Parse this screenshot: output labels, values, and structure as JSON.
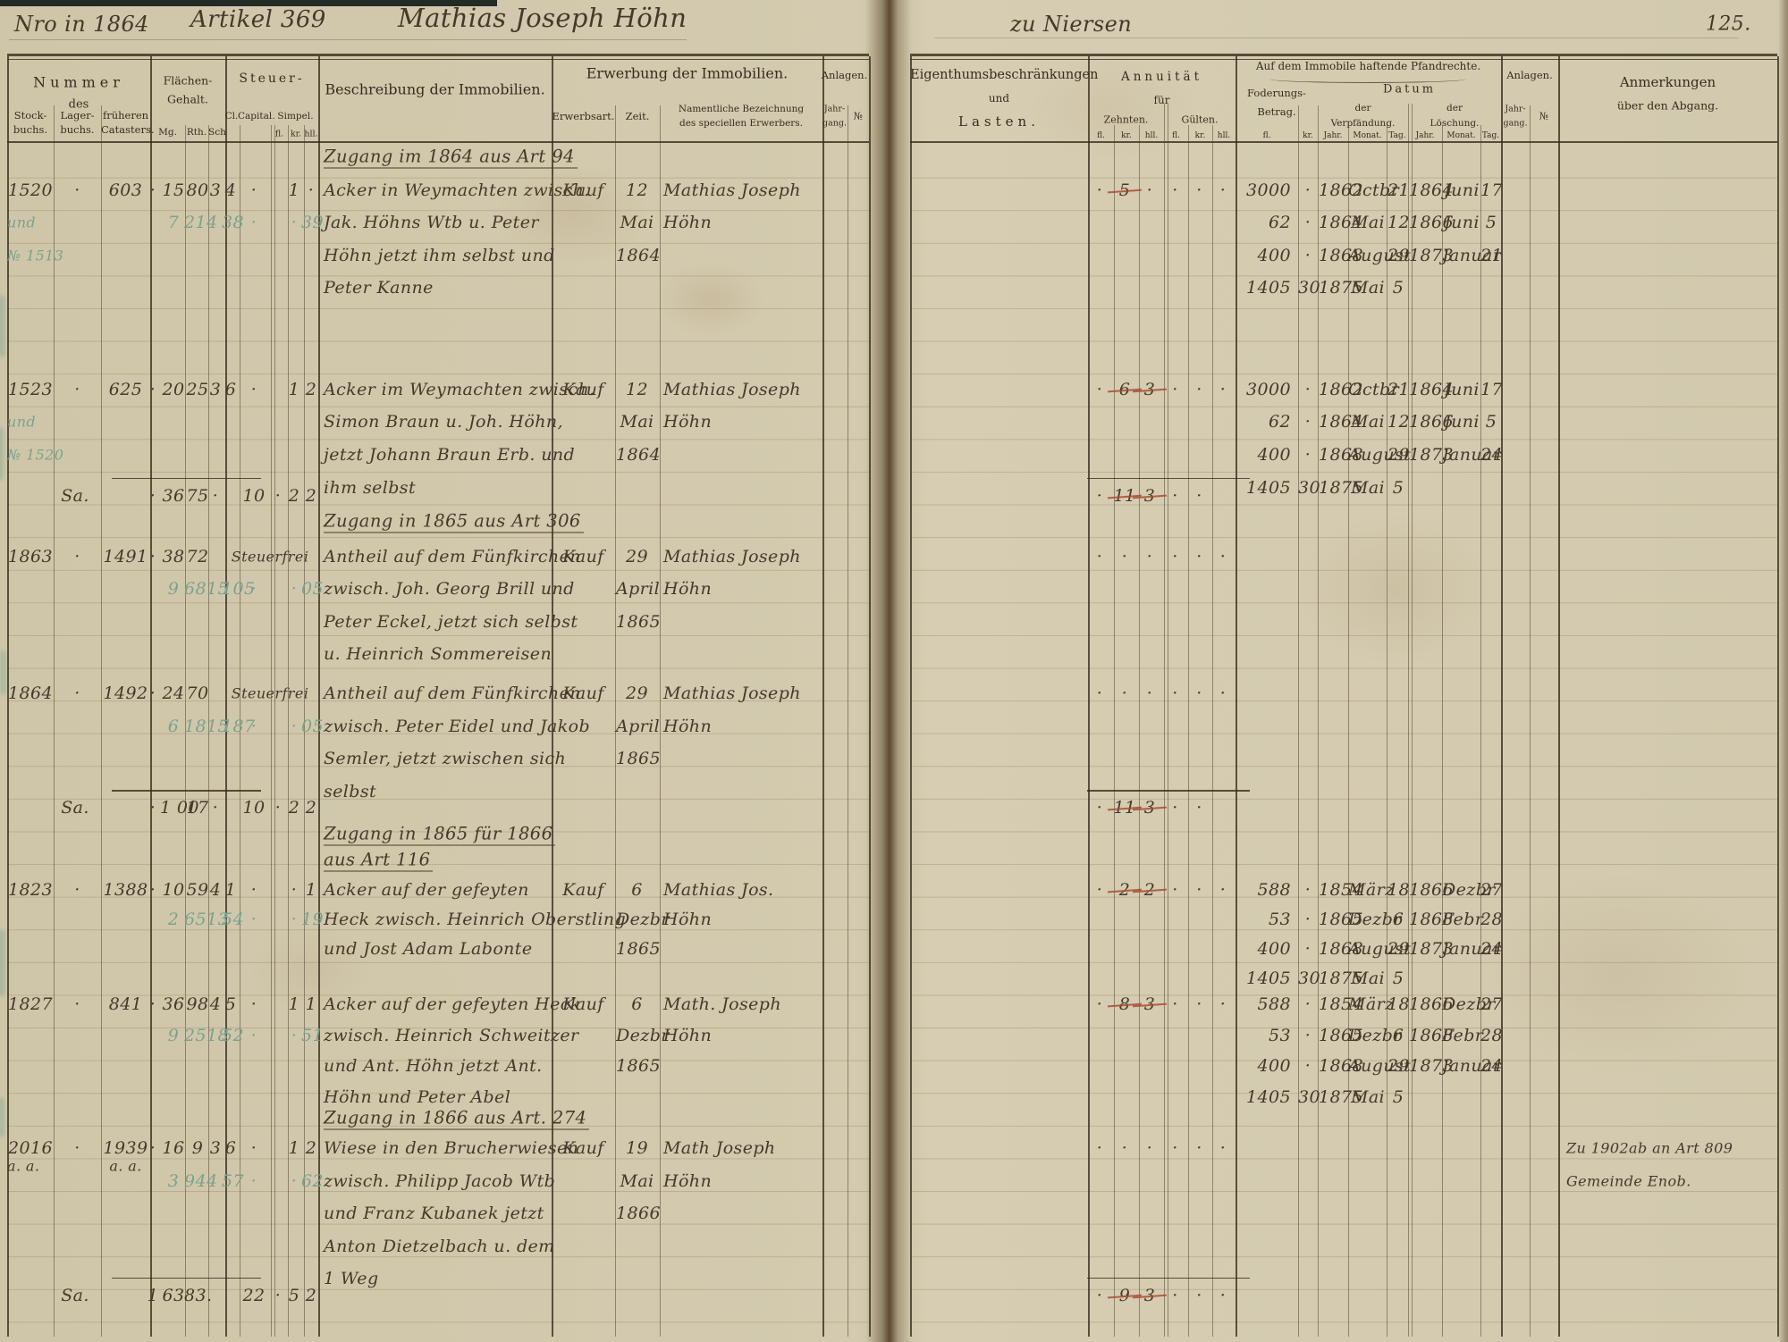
{
  "script_header": {
    "nro": "Nro in 1864",
    "artikel": "Artikel 369",
    "owner": "Mathias Joseph Höhn",
    "ort": "zu Niersen",
    "page_number": "125."
  },
  "printed": {
    "left": {
      "nummer": "Nummer",
      "des": "des",
      "stock1": "Stock-",
      "stock2": "buchs.",
      "lager1": "Lager-",
      "lager2": "buchs.",
      "cat1": "früheren",
      "cat2": "Catasters.",
      "flaech1": "Flächen-",
      "flaech2": "Gehalt.",
      "mg": "Mg.",
      "rth": "Rth.",
      "sch": "Sch",
      "steuer": "Steuer-",
      "cl": "Cl.",
      "capital": "Capital.",
      "simpel": "Simpel.",
      "fl": "fl.",
      "kr": "kr.",
      "hll": "hll.",
      "beschreibung": "Beschreibung der Immobilien.",
      "erwerbung": "Erwerbung der Immobilien.",
      "erwerbsart": "Erwerbsart.",
      "zeit": "Zeit.",
      "nam1": "Namentliche Bezeichnung",
      "nam2": "des speciellen Erwerbers.",
      "jg1": "Jahr-",
      "jg2": "gang.",
      "anlagen": "Anlagen.",
      "no": "№"
    },
    "right": {
      "eig1": "Eigenthumsbeschränkungen",
      "eig2": "und",
      "eig3": "Lasten.",
      "annuitaet": "Annuität",
      "fuer": "für",
      "zehnten": "Zehnten.",
      "guelten": "Gülten.",
      "fl": "fl.",
      "kr": "kr.",
      "hll": "hll.",
      "pfand": "Auf dem Immobile haftende Pfandrechte.",
      "fod1": "Foderungs-",
      "fod2": "Betrag.",
      "datum": "Datum",
      "v1": "der",
      "v2": "Verpfändung.",
      "l1": "der",
      "l2": "Löschung.",
      "jahr": "Jahr.",
      "monat": "Monat.",
      "tag": "Tag.",
      "anlagen": "Anlagen.",
      "jg1": "Jahr-",
      "jg2": "gang.",
      "no": "№",
      "anm1": "Anmerkungen",
      "anm2": "über den Abgang."
    }
  },
  "entries": [
    {
      "kind": "heading",
      "line": 0,
      "text": "Zugang im 1864 aus Art 94"
    },
    {
      "kind": "row",
      "line": 1,
      "stock": "1520",
      "stock_sub": [
        {
          "t": "und",
          "green": true,
          "dl": 1
        },
        {
          "t": "№ 1513",
          "green": true,
          "dl": 2
        }
      ],
      "lager": "·",
      "cat": "603",
      "m1": {
        "pre": "·",
        "mg": "15",
        "rth": "80",
        "sch": "3",
        "cl": "4",
        "cap": "·",
        "kr": "1",
        "hll": "·"
      },
      "m2": {
        "mg": "7",
        "rth": "214",
        "cl": "38",
        "cap": "·",
        "kr": "·",
        "hll": "39"
      },
      "desc": [
        "Acker in Weymachten zwisch.",
        "Jak. Höhns Wtb u. Peter",
        "Höhn jetzt ihm selbst und",
        "Peter Kanne"
      ],
      "art": "Kauf",
      "zeit": [
        "12",
        "Mai",
        "1864"
      ],
      "name": [
        "Mathias Joseph",
        "Höhn"
      ],
      "annu": "· ~5~ · · · ·",
      "pfand": [
        {
          "fl": "3000",
          "kr": "·",
          "vj": "1862",
          "vm": "Octbr",
          "vt": "21",
          "lj": "1864",
          "lm": "Juni",
          "lt": "17"
        },
        {
          "fl": "62",
          "kr": "·",
          "vj": "1864",
          "vm": "Mai",
          "vt": "12",
          "lj": "1866",
          "lm": "Juni",
          "lt": "5"
        },
        {
          "fl": "400",
          "kr": "·",
          "vj": "1868",
          "vm": "August",
          "vt": "29",
          "lj": "1873",
          "lm": "Januar",
          "lt": "21"
        },
        {
          "fl": "1405",
          "kr": "30",
          "vj": "1875",
          "vm": "Mai",
          "vt": "5"
        }
      ]
    },
    {
      "kind": "row",
      "line": 7.1,
      "stock": "1523",
      "stock_sub": [
        {
          "t": "und",
          "green": true,
          "dl": 1
        },
        {
          "t": "№ 1520",
          "green": true,
          "dl": 2
        }
      ],
      "lager": "·",
      "cat": "625",
      "m1": {
        "pre": "·",
        "mg": "20",
        "rth": "25",
        "sch": "3",
        "cl": "6",
        "cap": "·",
        "kr": "1",
        "hll": "2"
      },
      "desc": [
        "Acker im Weymachten zwisch.",
        "Simon Braun u. Joh. Höhn,",
        "jetzt Johann Braun Erb. und",
        "ihm selbst"
      ],
      "art": "Kauf",
      "zeit": [
        "12",
        "Mai",
        "1864"
      ],
      "name": [
        "Mathias Joseph",
        "Höhn"
      ],
      "annu": "· ~6~ ~3~ · · ·",
      "pfand": [
        {
          "fl": "3000",
          "kr": "·",
          "vj": "1862",
          "vm": "Octbr",
          "vt": "21",
          "lj": "1864",
          "lm": "Juni",
          "lt": "17"
        },
        {
          "fl": "62",
          "kr": "·",
          "vj": "1864",
          "vm": "Mai",
          "vt": "12",
          "lj": "1866",
          "lm": "Juni",
          "lt": "5"
        },
        {
          "fl": "400",
          "kr": "·",
          "vj": "1868",
          "vm": "August",
          "vt": "29",
          "lj": "1873",
          "lm": "Januar",
          "lt": "24"
        },
        {
          "fl": "1405",
          "kr": "30",
          "vj": "1875",
          "vm": "Mai",
          "vt": "5"
        }
      ]
    },
    {
      "kind": "sum",
      "line": 10.35,
      "label": "Sa.",
      "m": {
        "pre": "·",
        "mg": "36",
        "rth": "75",
        "sch": "·",
        "cap": "10",
        "fl": "·",
        "kr": "2",
        "hll": "2"
      },
      "annu": "· ~11~ ~3~ · ·"
    },
    {
      "kind": "heading",
      "line": 11.15,
      "text": "Zugang in 1865 aus Art 306"
    },
    {
      "kind": "row",
      "line": 12.2,
      "stock": "1863",
      "lager": "·",
      "cat": "1491",
      "m1": {
        "pre": "·",
        "mg": "38",
        "rth": "72"
      },
      "steuerfrei": "Steuerfrei",
      "m2": {
        "mg": "9",
        "rth": "6815",
        "cl": "105",
        "cap": "·",
        "kr": "·",
        "hll": "05"
      },
      "desc": [
        "Antheil auf dem Fünfkirchen",
        "zwisch. Joh. Georg Brill und",
        "Peter Eckel, jetzt sich selbst",
        "u. Heinrich Sommereisen"
      ],
      "art": "Kauf",
      "zeit": [
        "29",
        "April",
        "1865"
      ],
      "name": [
        "Mathias Joseph",
        "Höhn"
      ],
      "annu": "· · · · · ·"
    },
    {
      "kind": "row",
      "line": 16.4,
      "stock": "1864",
      "lager": "·",
      "cat": "1492",
      "m1": {
        "pre": "·",
        "mg": "24",
        "rth": "70"
      },
      "steuerfrei": "Steuerfrei",
      "m2": {
        "mg": "6",
        "rth": "1815",
        "cl": "187",
        "cap": "·",
        "kr": "·",
        "hll": "05"
      },
      "desc": [
        "Antheil auf dem Fünfkirchen",
        "zwisch. Peter Eidel und Jakob",
        "Semler, jetzt zwischen sich",
        "selbst"
      ],
      "art": "Kauf",
      "zeit": [
        "29",
        "April",
        "1865"
      ],
      "name": [
        "Mathias Joseph",
        "Höhn"
      ],
      "annu": "· · · · · ·"
    },
    {
      "kind": "sum",
      "line": 19.9,
      "label": "Sa.",
      "m": {
        "pre": "·",
        "mg": "1 00",
        "rth": "17",
        "sch": "·",
        "cap": "10",
        "fl": "·",
        "kr": "2",
        "hll": "2"
      },
      "annu": "· ~11~ ~3~ · ·"
    },
    {
      "kind": "heading",
      "line": 20.7,
      "text": "Zugang in 1865 für 1866"
    },
    {
      "kind": "heading",
      "line": 21.5,
      "text": "aus Art 116"
    },
    {
      "kind": "row",
      "line": 22.4,
      "pstep": 0.9,
      "stock": "1823",
      "lager": "·",
      "cat": "1388",
      "m1": {
        "pre": "·",
        "mg": "10",
        "rth": "59",
        "sch": "4",
        "cl": "1",
        "cap": "·",
        "kr": "·",
        "hll": "1"
      },
      "m2": {
        "mg": "2",
        "rth": "6513",
        "cl": "54",
        "cap": "·",
        "kr": "·",
        "hll": "19"
      },
      "desc": [
        "Acker auf der gefeyten",
        "Heck zwisch. Heinrich Oberstling",
        "und Jost Adam Labonte"
      ],
      "art": "Kauf",
      "zeit": [
        "6",
        "Dezbr",
        "1865"
      ],
      "name": [
        "Mathias Jos.",
        "Höhn"
      ],
      "annu": "· ~2~ ~2~ · · ·",
      "pfand": [
        {
          "fl": "588",
          "kr": "·",
          "vj": "1854",
          "vm": "März",
          "vt": "18",
          "lj": "1866",
          "lm": "Dezbr",
          "lt": "27"
        },
        {
          "fl": "53",
          "kr": "·",
          "vj": "1865",
          "vm": "Dezbr",
          "vt": "6",
          "lj": "1868",
          "lm": "Febr",
          "lt": "28"
        },
        {
          "fl": "400",
          "kr": "·",
          "vj": "1868",
          "vm": "August",
          "vt": "29",
          "lj": "1873",
          "lm": "Januar",
          "lt": "24"
        },
        {
          "fl": "1405",
          "kr": "30",
          "vj": "1875",
          "vm": "Mai",
          "vt": "5"
        }
      ]
    },
    {
      "kind": "row",
      "line": 25.9,
      "pstep": 0.95,
      "stock": "1827",
      "lager": "·",
      "cat": "841",
      "m1": {
        "pre": "·",
        "mg": "36",
        "rth": "98",
        "sch": "4",
        "cl": "5",
        "cap": "·",
        "kr": "1",
        "hll": "1"
      },
      "m2": {
        "mg": "9",
        "rth": "2518",
        "cl": "52",
        "cap": "·",
        "kr": "·",
        "hll": "51"
      },
      "desc": [
        "Acker auf der gefeyten Heck",
        "zwisch. Heinrich Schweitzer",
        "und Ant. Höhn jetzt Ant.",
        "Höhn und Peter Abel"
      ],
      "art": "Kauf",
      "zeit": [
        "6",
        "Dezbr",
        "1865"
      ],
      "name": [
        "Math. Joseph",
        "Höhn"
      ],
      "annu": "· ~8~ ~3~ · · ·",
      "pfand": [
        {
          "fl": "588",
          "kr": "·",
          "vj": "1854",
          "vm": "März",
          "vt": "18",
          "lj": "1866",
          "lm": "Dezbr",
          "lt": "27"
        },
        {
          "fl": "53",
          "kr": "·",
          "vj": "1865",
          "vm": "Dezbr",
          "vt": "6",
          "lj": "1868",
          "lm": "Febr",
          "lt": "28"
        },
        {
          "fl": "400",
          "kr": "·",
          "vj": "1868",
          "vm": "August",
          "vt": "29",
          "lj": "1873",
          "lm": "Januar",
          "lt": "24"
        },
        {
          "fl": "1405",
          "kr": "30",
          "vj": "1875",
          "vm": "Mai",
          "vt": "5"
        }
      ]
    },
    {
      "kind": "heading",
      "line": 29.4,
      "text": "Zugang in 1866 aus Art. 274"
    },
    {
      "kind": "row",
      "line": 30.3,
      "stock": "2016",
      "stock_sub": [
        {
          "t": "a. a.",
          "dl": 0.55
        }
      ],
      "lager": "·",
      "cat": "1939",
      "cat_sub": "a. a.",
      "m1": {
        "pre": "·",
        "mg": "16",
        "rth": "9",
        "sch": "3",
        "cl": "6",
        "cap": "·",
        "kr": "1",
        "hll": "2"
      },
      "m2": {
        "mg": "3",
        "rth": "944",
        "cl": "57",
        "cap": "·",
        "kr": "·",
        "hll": "62"
      },
      "desc": [
        "Wiese in den Brucherwiesen",
        "zwisch. Philipp Jacob Wtb",
        "und Franz Kubanek jetzt",
        "Anton Dietzelbach u. dem",
        "1 Weg"
      ],
      "art": "Kauf",
      "zeit": [
        "19",
        "Mai",
        "1866"
      ],
      "name": [
        "Math Joseph",
        "Höhn"
      ],
      "annu": "· · · · · ·",
      "anm": [
        "Zu 1902ab an Art 809",
        "Gemeinde Enob."
      ]
    },
    {
      "kind": "sum",
      "line": 34.8,
      "label": "Sa.",
      "m": {
        "pre": "1",
        "mg": "63",
        "rth": "83.",
        "cap": "22",
        "fl": "·",
        "kr": "5",
        "hll": "2"
      },
      "annu": "· ~9~ ~3~ · · ·"
    }
  ]
}
